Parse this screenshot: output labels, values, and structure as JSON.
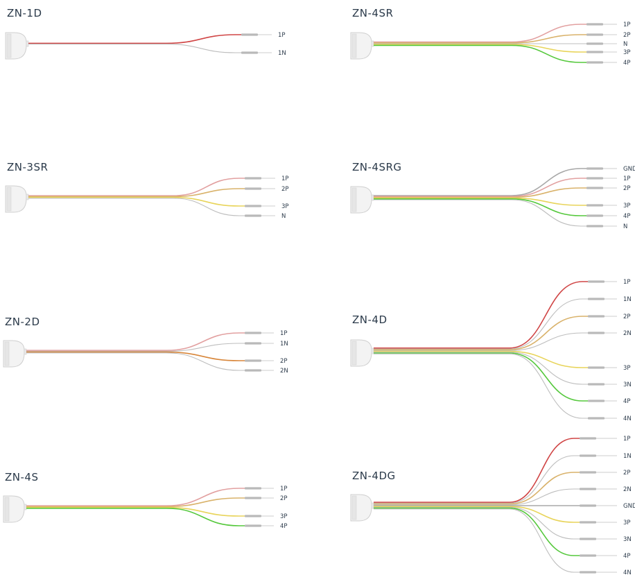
{
  "colors": {
    "red": "#d04545",
    "pink": "#e2a0a0",
    "white": "#bdbdbd",
    "tan": "#d9b26a",
    "yellow": "#e8d45a",
    "orange": "#d8863a",
    "green": "#55c83c",
    "gray": "#a8a8a8"
  },
  "diagrams": [
    {
      "title": "ZN-1D",
      "wires": [
        {
          "label": "1P",
          "color": "red"
        },
        {
          "label": "1N",
          "color": "white"
        }
      ]
    },
    {
      "title": "ZN-4SR",
      "wires": [
        {
          "label": "1P",
          "color": "pink"
        },
        {
          "label": "2P",
          "color": "tan"
        },
        {
          "label": "N",
          "color": "white"
        },
        {
          "label": "3P",
          "color": "yellow"
        },
        {
          "label": "4P",
          "color": "green"
        }
      ]
    },
    {
      "title": "ZN-3SR",
      "wires": [
        {
          "label": "1P",
          "color": "pink"
        },
        {
          "label": "2P",
          "color": "tan"
        },
        {
          "label": "3P",
          "color": "yellow"
        },
        {
          "label": "N",
          "color": "white"
        }
      ]
    },
    {
      "title": "ZN-4SRG",
      "wires": [
        {
          "label": "GND",
          "color": "gray"
        },
        {
          "label": "1P",
          "color": "pink"
        },
        {
          "label": "2P",
          "color": "tan"
        },
        {
          "label": "3P",
          "color": "yellow"
        },
        {
          "label": "4P",
          "color": "green"
        },
        {
          "label": "N",
          "color": "white"
        }
      ]
    },
    {
      "title": "ZN-2D",
      "wires": [
        {
          "label": "1P",
          "color": "pink"
        },
        {
          "label": "1N",
          "color": "white"
        },
        {
          "label": "2P",
          "color": "orange"
        },
        {
          "label": "2N",
          "color": "white"
        }
      ]
    },
    {
      "title": "ZN-4D",
      "wires": [
        {
          "label": "1P",
          "color": "red"
        },
        {
          "label": "1N",
          "color": "white"
        },
        {
          "label": "2P",
          "color": "tan"
        },
        {
          "label": "2N",
          "color": "white"
        },
        {
          "label": "3P",
          "color": "yellow"
        },
        {
          "label": "3N",
          "color": "white"
        },
        {
          "label": "4P",
          "color": "green"
        },
        {
          "label": "4N",
          "color": "white"
        }
      ]
    },
    {
      "title": "ZN-4S",
      "wires": [
        {
          "label": "1P",
          "color": "pink"
        },
        {
          "label": "2P",
          "color": "tan"
        },
        {
          "label": "3P",
          "color": "yellow"
        },
        {
          "label": "4P",
          "color": "green"
        }
      ]
    },
    {
      "title": "ZN-4DG",
      "wires": [
        {
          "label": "1P",
          "color": "red"
        },
        {
          "label": "1N",
          "color": "white"
        },
        {
          "label": "2P",
          "color": "tan"
        },
        {
          "label": "2N",
          "color": "white"
        },
        {
          "label": "GND",
          "color": "gray"
        },
        {
          "label": "3P",
          "color": "yellow"
        },
        {
          "label": "3N",
          "color": "white"
        },
        {
          "label": "4P",
          "color": "green"
        },
        {
          "label": "4N",
          "color": "white"
        }
      ]
    }
  ]
}
